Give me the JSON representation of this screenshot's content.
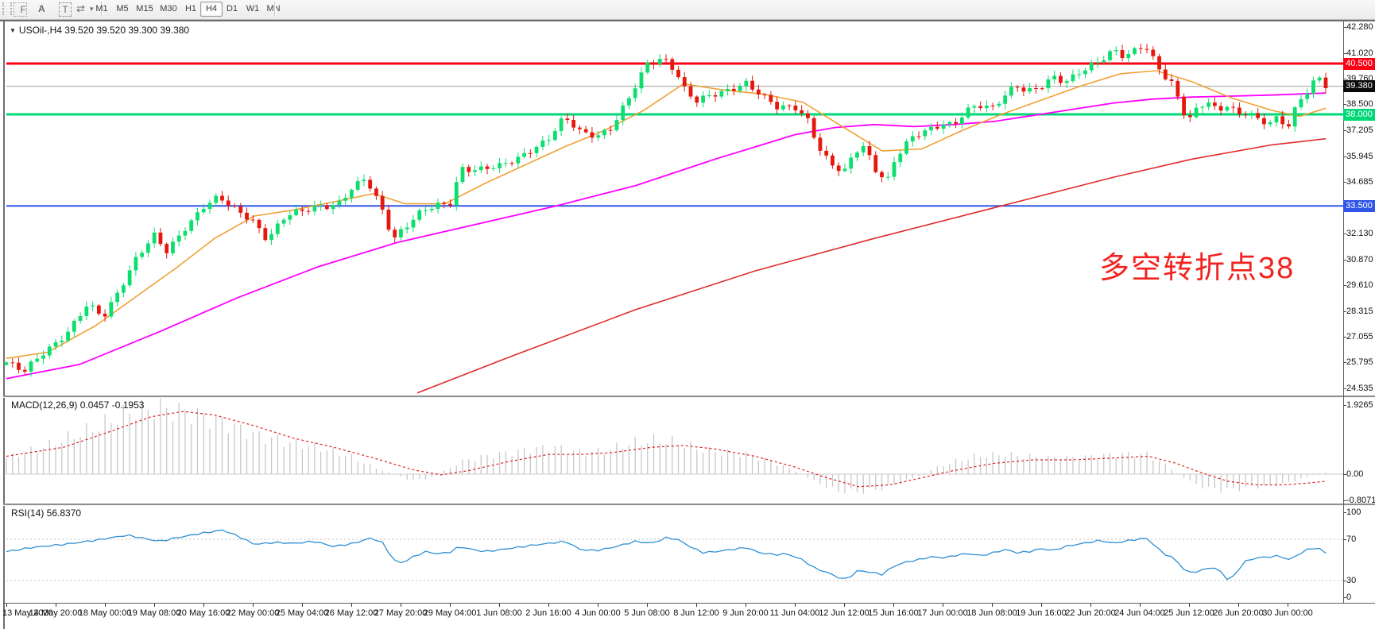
{
  "toolbar": {
    "icons": [
      {
        "name": "toolbar-grip",
        "glyph": ""
      },
      {
        "name": "indicator-frame-icon",
        "glyph": "F"
      },
      {
        "name": "text-annotation-icon",
        "glyph": "A"
      },
      {
        "name": "text-label-icon",
        "glyph": "T"
      },
      {
        "name": "cycle-arrows-icon",
        "glyph": "⇄"
      },
      {
        "name": "dropdown-caret-icon",
        "glyph": "▾"
      }
    ],
    "timeframes": [
      "M1",
      "M5",
      "M15",
      "M30",
      "H1",
      "H4",
      "D1",
      "W1",
      "MN"
    ],
    "active_timeframe": "H4"
  },
  "chart": {
    "dropdown_caret": "▼",
    "symbol_period": "USOil-,H4",
    "ohlc_text": "39.520 39.520 39.300 39.380",
    "annotation": "多空转折点38",
    "annotation_color": "#f2231f",
    "price_axis_ticks": [
      "42.280",
      "41.020",
      "39.760",
      "38.500",
      "37.205",
      "35.945",
      "34.685",
      "33.425",
      "32.130",
      "30.870",
      "29.610",
      "28.315",
      "27.055",
      "25.795",
      "24.535"
    ],
    "price_markers": [
      {
        "text": "40.500",
        "price": 40.5,
        "bg": "#fd0015"
      },
      {
        "text": "39.380",
        "price": 39.38,
        "bg": "#0a0a0a"
      },
      {
        "text": "38.000",
        "price": 38.0,
        "bg": "#00d877"
      },
      {
        "text": "33.500",
        "price": 33.5,
        "bg": "#3056e8"
      }
    ],
    "time_axis": [
      "13 May 2020",
      "14 May 20:00",
      "18 May 00:00",
      "19 May 08:00",
      "20 May 16:00",
      "22 May 00:00",
      "25 May 04:00",
      "26 May 12:00",
      "27 May 20:00",
      "29 May 04:00",
      "1 Jun 08:00",
      "2 Jun 16:00",
      "4 Jun 00:00",
      "5 Jun 08:00",
      "8 Jun 12:00",
      "9 Jun 20:00",
      "11 Jun 04:00",
      "12 Jun 12:00",
      "15 Jun 16:00",
      "17 Jun 00:00",
      "18 Jun 08:00",
      "19 Jun 16:00",
      "22 Jun 20:00",
      "24 Jun 04:00",
      "25 Jun 12:00",
      "26 Jun 20:00",
      "30 Jun 00:00"
    ]
  },
  "macd": {
    "label": "MACD(12,26,9) 0.0457 -0.1953",
    "value_main": 0.0457,
    "value_signal": -0.1953,
    "axis": [
      "1.9265",
      "0.00",
      "-0.8071"
    ]
  },
  "rsi": {
    "label": "RSI(14) 56.8370",
    "value": 56.837,
    "axis": [
      "100",
      "70",
      "30",
      "0"
    ],
    "dashed_levels": [
      70,
      30
    ]
  },
  "chart_data": {
    "type": "candlestick",
    "symbol": "USOil",
    "timeframe": "H4",
    "current_ohlc": {
      "open": 39.52,
      "high": 39.52,
      "low": 39.3,
      "close": 39.38
    },
    "price_range_visible": [
      24.17,
      42.53
    ],
    "hlines": [
      {
        "price": 40.5,
        "color": "#fd0015",
        "width": 3,
        "name": "resistance-40.500"
      },
      {
        "price": 38.0,
        "color": "#00d877",
        "width": 3,
        "name": "pivot-38.000"
      },
      {
        "price": 33.5,
        "color": "#3056e8",
        "width": 2,
        "name": "support-33.500"
      },
      {
        "price": 39.38,
        "color": "#9e9e9e",
        "width": 1,
        "name": "current-price-39.380"
      }
    ],
    "colors": {
      "up": "#0ddf6f",
      "down": "#e6180e",
      "ma_fast": "#efa135",
      "ma_mid": "#ff00ff",
      "ma_slow": "#e02b2b",
      "macd_hist": "#c8c8c8",
      "macd_signal": "#dd2222",
      "rsi_line": "#2e8fd5",
      "rsi_dash": "#c0c0c0"
    },
    "close_path": [
      [
        8,
        25.8
      ],
      [
        30,
        25.3
      ],
      [
        55,
        26.3
      ],
      [
        85,
        27.3
      ],
      [
        110,
        28.6
      ],
      [
        130,
        28.0
      ],
      [
        150,
        29.4
      ],
      [
        172,
        31.0
      ],
      [
        194,
        32.0
      ],
      [
        210,
        31.2
      ],
      [
        232,
        32.4
      ],
      [
        256,
        33.5
      ],
      [
        275,
        33.9
      ],
      [
        295,
        33.3
      ],
      [
        318,
        32.8
      ],
      [
        336,
        31.9
      ],
      [
        360,
        33.0
      ],
      [
        380,
        33.2
      ],
      [
        400,
        33.5
      ],
      [
        425,
        33.6
      ],
      [
        442,
        34.3
      ],
      [
        460,
        34.8
      ],
      [
        480,
        33.4
      ],
      [
        495,
        31.9
      ],
      [
        504,
        32.3
      ],
      [
        530,
        33.2
      ],
      [
        552,
        33.5
      ],
      [
        566,
        33.6
      ],
      [
        580,
        35.4
      ],
      [
        600,
        35.3
      ],
      [
        628,
        35.4
      ],
      [
        650,
        35.8
      ],
      [
        668,
        36.3
      ],
      [
        690,
        36.8
      ],
      [
        710,
        37.8
      ],
      [
        731,
        37.1
      ],
      [
        752,
        37.0
      ],
      [
        770,
        37.4
      ],
      [
        795,
        39.0
      ],
      [
        815,
        40.5
      ],
      [
        835,
        40.8
      ],
      [
        850,
        40.2
      ],
      [
        862,
        39.2
      ],
      [
        876,
        38.6
      ],
      [
        895,
        38.9
      ],
      [
        915,
        39.2
      ],
      [
        938,
        39.6
      ],
      [
        958,
        38.9
      ],
      [
        978,
        38.3
      ],
      [
        1000,
        38.4
      ],
      [
        1015,
        37.9
      ],
      [
        1030,
        36.4
      ],
      [
        1045,
        35.5
      ],
      [
        1062,
        35.1
      ],
      [
        1076,
        36.2
      ],
      [
        1088,
        36.5
      ],
      [
        1100,
        35.4
      ],
      [
        1112,
        34.9
      ],
      [
        1118,
        34.8
      ],
      [
        1124,
        35.6
      ],
      [
        1136,
        36.3
      ],
      [
        1150,
        36.9
      ],
      [
        1165,
        37.2
      ],
      [
        1186,
        37.6
      ],
      [
        1200,
        37.5
      ],
      [
        1215,
        38.1
      ],
      [
        1230,
        38.4
      ],
      [
        1248,
        38.3
      ],
      [
        1262,
        38.9
      ],
      [
        1278,
        39.5
      ],
      [
        1292,
        39.1
      ],
      [
        1310,
        39.3
      ],
      [
        1326,
        39.8
      ],
      [
        1340,
        39.6
      ],
      [
        1356,
        40.1
      ],
      [
        1372,
        40.4
      ],
      [
        1388,
        40.7
      ],
      [
        1402,
        41.1
      ],
      [
        1415,
        40.8
      ],
      [
        1428,
        41.2
      ],
      [
        1440,
        41.5
      ],
      [
        1452,
        40.7
      ],
      [
        1464,
        39.9
      ],
      [
        1476,
        39.4
      ],
      [
        1488,
        38.1
      ],
      [
        1496,
        37.7
      ],
      [
        1508,
        38.4
      ],
      [
        1520,
        38.7
      ],
      [
        1532,
        38.2
      ],
      [
        1545,
        38.5
      ],
      [
        1558,
        37.9
      ],
      [
        1570,
        38.1
      ],
      [
        1582,
        37.7
      ],
      [
        1596,
        37.6
      ],
      [
        1608,
        37.9
      ],
      [
        1620,
        37.4
      ],
      [
        1632,
        38.5
      ],
      [
        1645,
        39.1
      ],
      [
        1654,
        39.6
      ],
      [
        1662,
        39.7
      ],
      [
        1668,
        39.38
      ]
    ],
    "ma_fast_path": [
      [
        8,
        26.0
      ],
      [
        60,
        26.3
      ],
      [
        120,
        27.6
      ],
      [
        170,
        29.0
      ],
      [
        220,
        30.4
      ],
      [
        270,
        31.9
      ],
      [
        320,
        33.0
      ],
      [
        370,
        33.3
      ],
      [
        420,
        33.7
      ],
      [
        470,
        34.1
      ],
      [
        510,
        33.6
      ],
      [
        560,
        33.6
      ],
      [
        610,
        34.6
      ],
      [
        660,
        35.5
      ],
      [
        710,
        36.4
      ],
      [
        760,
        37.2
      ],
      [
        810,
        38.2
      ],
      [
        860,
        39.5
      ],
      [
        910,
        39.2
      ],
      [
        960,
        39.0
      ],
      [
        1010,
        38.6
      ],
      [
        1060,
        37.4
      ],
      [
        1110,
        36.2
      ],
      [
        1160,
        36.3
      ],
      [
        1210,
        37.2
      ],
      [
        1260,
        38.0
      ],
      [
        1310,
        38.7
      ],
      [
        1360,
        39.4
      ],
      [
        1410,
        40.0
      ],
      [
        1455,
        40.15
      ],
      [
        1500,
        39.6
      ],
      [
        1550,
        38.8
      ],
      [
        1600,
        38.2
      ],
      [
        1635,
        37.9
      ],
      [
        1668,
        38.3
      ]
    ],
    "ma_mid_path": [
      [
        8,
        25.0
      ],
      [
        100,
        25.7
      ],
      [
        200,
        27.3
      ],
      [
        300,
        29.0
      ],
      [
        400,
        30.5
      ],
      [
        500,
        31.7
      ],
      [
        600,
        32.6
      ],
      [
        700,
        33.5
      ],
      [
        800,
        34.5
      ],
      [
        900,
        35.8
      ],
      [
        950,
        36.4
      ],
      [
        1000,
        37.0
      ],
      [
        1050,
        37.35
      ],
      [
        1100,
        37.5
      ],
      [
        1150,
        37.4
      ],
      [
        1200,
        37.5
      ],
      [
        1250,
        37.65
      ],
      [
        1300,
        37.95
      ],
      [
        1350,
        38.25
      ],
      [
        1400,
        38.55
      ],
      [
        1450,
        38.75
      ],
      [
        1500,
        38.85
      ],
      [
        1550,
        38.9
      ],
      [
        1600,
        38.95
      ],
      [
        1668,
        39.05
      ]
    ],
    "ma_slow_path": [
      [
        525,
        24.3
      ],
      [
        650,
        26.2
      ],
      [
        800,
        28.4
      ],
      [
        950,
        30.3
      ],
      [
        1100,
        31.9
      ],
      [
        1250,
        33.4
      ],
      [
        1400,
        34.9
      ],
      [
        1500,
        35.8
      ],
      [
        1600,
        36.5
      ],
      [
        1668,
        36.8
      ]
    ],
    "macd_hist_path": [
      [
        8,
        0.45
      ],
      [
        60,
        0.8
      ],
      [
        120,
        1.3
      ],
      [
        165,
        1.75
      ],
      [
        200,
        1.85
      ],
      [
        240,
        1.7
      ],
      [
        280,
        1.45
      ],
      [
        320,
        1.1
      ],
      [
        360,
        0.9
      ],
      [
        400,
        0.75
      ],
      [
        440,
        0.5
      ],
      [
        470,
        0.2
      ],
      [
        500,
        -0.05
      ],
      [
        520,
        -0.18
      ],
      [
        540,
        -0.12
      ],
      [
        560,
        0.1
      ],
      [
        580,
        0.35
      ],
      [
        610,
        0.5
      ],
      [
        640,
        0.6
      ],
      [
        670,
        0.7
      ],
      [
        700,
        0.75
      ],
      [
        730,
        0.6
      ],
      [
        760,
        0.65
      ],
      [
        790,
        0.85
      ],
      [
        820,
        0.95
      ],
      [
        850,
        0.9
      ],
      [
        880,
        0.7
      ],
      [
        910,
        0.6
      ],
      [
        940,
        0.55
      ],
      [
        970,
        0.35
      ],
      [
        1000,
        0.1
      ],
      [
        1025,
        -0.2
      ],
      [
        1050,
        -0.45
      ],
      [
        1075,
        -0.5
      ],
      [
        1100,
        -0.45
      ],
      [
        1125,
        -0.3
      ],
      [
        1150,
        -0.1
      ],
      [
        1175,
        0.15
      ],
      [
        1200,
        0.35
      ],
      [
        1230,
        0.5
      ],
      [
        1260,
        0.55
      ],
      [
        1290,
        0.5
      ],
      [
        1320,
        0.45
      ],
      [
        1350,
        0.45
      ],
      [
        1380,
        0.5
      ],
      [
        1410,
        0.55
      ],
      [
        1443,
        0.55
      ],
      [
        1460,
        0.35
      ],
      [
        1480,
        0.05
      ],
      [
        1500,
        -0.25
      ],
      [
        1520,
        -0.4
      ],
      [
        1540,
        -0.45
      ],
      [
        1560,
        -0.4
      ],
      [
        1580,
        -0.35
      ],
      [
        1600,
        -0.3
      ],
      [
        1620,
        -0.25
      ],
      [
        1640,
        -0.1
      ],
      [
        1655,
        0.0
      ],
      [
        1668,
        0.05
      ]
    ],
    "macd_signal_path": [
      [
        8,
        0.5
      ],
      [
        80,
        0.75
      ],
      [
        140,
        1.2
      ],
      [
        190,
        1.6
      ],
      [
        230,
        1.75
      ],
      [
        270,
        1.65
      ],
      [
        320,
        1.35
      ],
      [
        370,
        1.0
      ],
      [
        420,
        0.75
      ],
      [
        470,
        0.45
      ],
      [
        520,
        0.12
      ],
      [
        555,
        -0.02
      ],
      [
        590,
        0.1
      ],
      [
        640,
        0.35
      ],
      [
        690,
        0.55
      ],
      [
        730,
        0.55
      ],
      [
        770,
        0.6
      ],
      [
        820,
        0.75
      ],
      [
        860,
        0.8
      ],
      [
        900,
        0.7
      ],
      [
        950,
        0.5
      ],
      [
        1000,
        0.2
      ],
      [
        1040,
        -0.1
      ],
      [
        1080,
        -0.35
      ],
      [
        1120,
        -0.3
      ],
      [
        1160,
        -0.1
      ],
      [
        1200,
        0.1
      ],
      [
        1250,
        0.3
      ],
      [
        1300,
        0.4
      ],
      [
        1350,
        0.4
      ],
      [
        1400,
        0.45
      ],
      [
        1445,
        0.5
      ],
      [
        1480,
        0.3
      ],
      [
        1510,
        0.05
      ],
      [
        1545,
        -0.2
      ],
      [
        1580,
        -0.3
      ],
      [
        1615,
        -0.3
      ],
      [
        1645,
        -0.25
      ],
      [
        1668,
        -0.2
      ]
    ],
    "rsi_path": [
      [
        8,
        58
      ],
      [
        40,
        62
      ],
      [
        80,
        65
      ],
      [
        120,
        69
      ],
      [
        160,
        74
      ],
      [
        200,
        68
      ],
      [
        240,
        74
      ],
      [
        280,
        79
      ],
      [
        300,
        73
      ],
      [
        320,
        65
      ],
      [
        345,
        67
      ],
      [
        370,
        66
      ],
      [
        395,
        68
      ],
      [
        420,
        63
      ],
      [
        445,
        66
      ],
      [
        465,
        71
      ],
      [
        480,
        68
      ],
      [
        495,
        50
      ],
      [
        505,
        47
      ],
      [
        520,
        53
      ],
      [
        535,
        58
      ],
      [
        550,
        56
      ],
      [
        565,
        57
      ],
      [
        578,
        63
      ],
      [
        595,
        60
      ],
      [
        610,
        58
      ],
      [
        630,
        60
      ],
      [
        650,
        62
      ],
      [
        668,
        64
      ],
      [
        690,
        66
      ],
      [
        712,
        68
      ],
      [
        730,
        60
      ],
      [
        750,
        59
      ],
      [
        770,
        62
      ],
      [
        800,
        68
      ],
      [
        820,
        66
      ],
      [
        840,
        72
      ],
      [
        855,
        69
      ],
      [
        870,
        62
      ],
      [
        885,
        57
      ],
      [
        900,
        58
      ],
      [
        920,
        60
      ],
      [
        940,
        62
      ],
      [
        955,
        57
      ],
      [
        975,
        55
      ],
      [
        990,
        56
      ],
      [
        1010,
        50
      ],
      [
        1025,
        42
      ],
      [
        1040,
        38
      ],
      [
        1055,
        33
      ],
      [
        1065,
        31
      ],
      [
        1080,
        40
      ],
      [
        1095,
        38
      ],
      [
        1110,
        36
      ],
      [
        1125,
        44
      ],
      [
        1140,
        48
      ],
      [
        1155,
        50
      ],
      [
        1170,
        53
      ],
      [
        1190,
        52
      ],
      [
        1205,
        55
      ],
      [
        1220,
        56
      ],
      [
        1235,
        54
      ],
      [
        1250,
        57
      ],
      [
        1265,
        60
      ],
      [
        1280,
        57
      ],
      [
        1295,
        58
      ],
      [
        1310,
        61
      ],
      [
        1325,
        59
      ],
      [
        1340,
        63
      ],
      [
        1355,
        65
      ],
      [
        1370,
        67
      ],
      [
        1385,
        69
      ],
      [
        1400,
        66
      ],
      [
        1415,
        68
      ],
      [
        1430,
        70
      ],
      [
        1443,
        71
      ],
      [
        1455,
        62
      ],
      [
        1467,
        55
      ],
      [
        1480,
        50
      ],
      [
        1490,
        40
      ],
      [
        1498,
        38
      ],
      [
        1510,
        39
      ],
      [
        1522,
        43
      ],
      [
        1535,
        40
      ],
      [
        1543,
        31
      ],
      [
        1552,
        34
      ],
      [
        1565,
        48
      ],
      [
        1580,
        52
      ],
      [
        1598,
        53
      ],
      [
        1610,
        54
      ],
      [
        1622,
        50
      ],
      [
        1633,
        55
      ],
      [
        1645,
        60
      ],
      [
        1655,
        62
      ],
      [
        1662,
        60
      ],
      [
        1668,
        56.8
      ]
    ]
  }
}
